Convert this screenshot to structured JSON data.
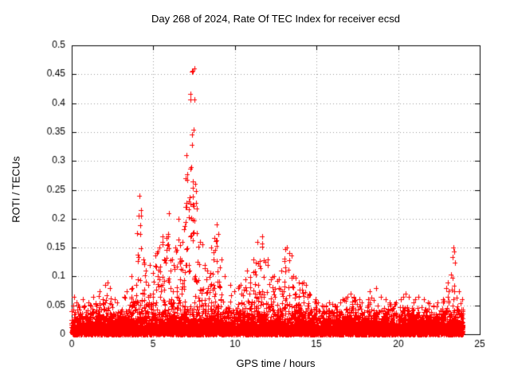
{
  "chart_data": {
    "type": "scatter",
    "title": "Day 268 of 2024, Rate Of TEC Index for receiver ecsd",
    "xlabel": "GPS time / hours",
    "ylabel": "ROTI / TECUs",
    "xlim": [
      0,
      25
    ],
    "ylim": [
      0,
      0.5
    ],
    "x_tick_values": [
      0,
      5,
      10,
      15,
      20,
      25
    ],
    "x_tick_labels": [
      "0",
      "5",
      "10",
      "15",
      "20",
      "25"
    ],
    "y_tick_values": [
      0,
      0.05,
      0.1,
      0.15,
      0.2,
      0.25,
      0.3,
      0.35,
      0.4,
      0.45,
      0.5
    ],
    "y_tick_labels": [
      "0",
      "0.05",
      "0.1",
      "0.15",
      "0.2",
      "0.25",
      "0.3",
      "0.35",
      "0.4",
      "0.45",
      "0.5"
    ],
    "grid": true,
    "legend": "none",
    "marker": "plus",
    "marker_color": "#ff0000",
    "data_x_range_hours": [
      0,
      24
    ],
    "bin_width_hours": 0.25,
    "bin_max_roti": [
      0.065,
      0.055,
      0.06,
      0.05,
      0.055,
      0.065,
      0.075,
      0.06,
      0.09,
      0.08,
      0.06,
      0.055,
      0.065,
      0.075,
      0.1,
      0.085,
      0.24,
      0.13,
      0.11,
      0.12,
      0.14,
      0.15,
      0.17,
      0.21,
      0.13,
      0.15,
      0.2,
      0.22,
      0.31,
      0.46,
      0.26,
      0.16,
      0.12,
      0.11,
      0.15,
      0.19,
      0.13,
      0.1,
      0.085,
      0.075,
      0.08,
      0.085,
      0.095,
      0.11,
      0.13,
      0.16,
      0.17,
      0.13,
      0.12,
      0.1,
      0.095,
      0.11,
      0.15,
      0.14,
      0.1,
      0.09,
      0.09,
      0.085,
      0.07,
      0.06,
      0.055,
      0.05,
      0.05,
      0.055,
      0.05,
      0.055,
      0.06,
      0.065,
      0.07,
      0.065,
      0.06,
      0.055,
      0.06,
      0.075,
      0.08,
      0.065,
      0.06,
      0.055,
      0.05,
      0.055,
      0.06,
      0.07,
      0.065,
      0.055,
      0.06,
      0.065,
      0.06,
      0.055,
      0.05,
      0.055,
      0.06,
      0.08,
      0.09,
      0.15,
      0.075,
      0.06
    ],
    "baseline_exp_scale": 0.013,
    "points_per_bin": 80,
    "seed": 268
  }
}
